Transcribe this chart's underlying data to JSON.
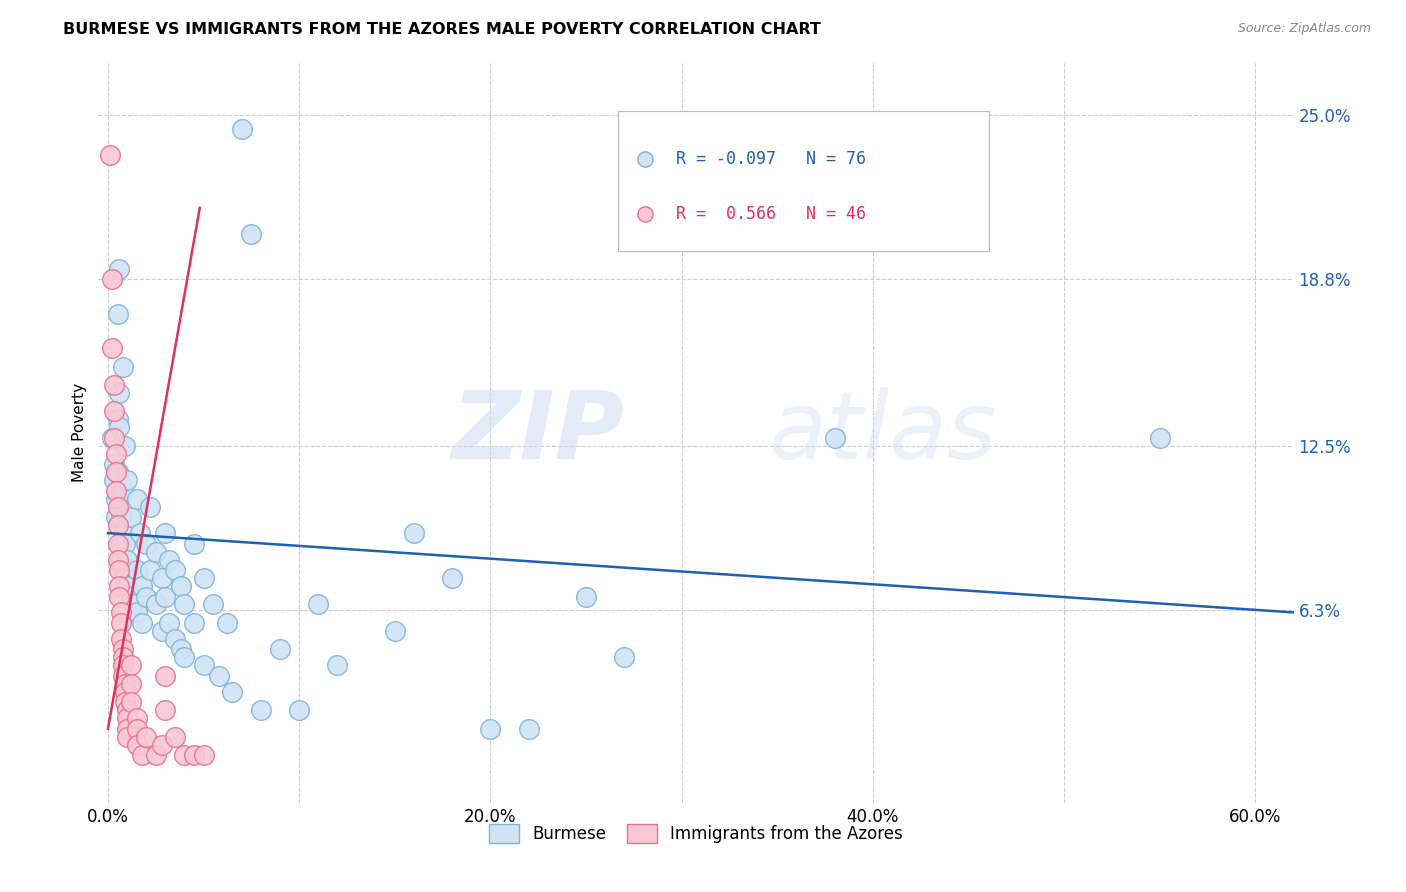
{
  "title": "BURMESE VS IMMIGRANTS FROM THE AZORES MALE POVERTY CORRELATION CHART",
  "source": "Source: ZipAtlas.com",
  "xlabel_ticks": [
    "0.0%",
    "",
    "20.0%",
    "",
    "40.0%",
    "",
    "60.0%"
  ],
  "xlabel_vals": [
    0.0,
    0.1,
    0.2,
    0.3,
    0.4,
    0.5,
    0.6
  ],
  "ylabel_ticks": [
    "6.3%",
    "12.5%",
    "18.8%",
    "25.0%"
  ],
  "ylabel_vals": [
    0.063,
    0.125,
    0.188,
    0.25
  ],
  "xlim": [
    -0.005,
    0.62
  ],
  "ylim": [
    -0.01,
    0.27
  ],
  "watermark_zip": "ZIP",
  "watermark_atlas": "atlas",
  "legend_blue_r": "-0.097",
  "legend_blue_n": "76",
  "legend_pink_r": "0.566",
  "legend_pink_n": "46",
  "blue_face": "#d0e4f5",
  "blue_edge": "#7fb3d9",
  "pink_face": "#f9c8d4",
  "pink_edge": "#e87090",
  "blue_line_color": "#2060b0",
  "pink_line_color": "#e03060",
  "blue_scatter": [
    [
      0.002,
      0.128
    ],
    [
      0.003,
      0.118
    ],
    [
      0.003,
      0.112
    ],
    [
      0.004,
      0.105
    ],
    [
      0.004,
      0.098
    ],
    [
      0.005,
      0.175
    ],
    [
      0.005,
      0.135
    ],
    [
      0.005,
      0.115
    ],
    [
      0.005,
      0.108
    ],
    [
      0.006,
      0.192
    ],
    [
      0.006,
      0.145
    ],
    [
      0.006,
      0.132
    ],
    [
      0.007,
      0.098
    ],
    [
      0.007,
      0.088
    ],
    [
      0.007,
      0.082
    ],
    [
      0.008,
      0.155
    ],
    [
      0.008,
      0.108
    ],
    [
      0.008,
      0.092
    ],
    [
      0.008,
      0.078
    ],
    [
      0.009,
      0.125
    ],
    [
      0.009,
      0.088
    ],
    [
      0.009,
      0.075
    ],
    [
      0.01,
      0.112
    ],
    [
      0.01,
      0.082
    ],
    [
      0.01,
      0.072
    ],
    [
      0.012,
      0.098
    ],
    [
      0.012,
      0.068
    ],
    [
      0.013,
      0.065
    ],
    [
      0.015,
      0.105
    ],
    [
      0.015,
      0.078
    ],
    [
      0.015,
      0.062
    ],
    [
      0.017,
      0.092
    ],
    [
      0.018,
      0.072
    ],
    [
      0.018,
      0.058
    ],
    [
      0.02,
      0.088
    ],
    [
      0.02,
      0.068
    ],
    [
      0.022,
      0.102
    ],
    [
      0.022,
      0.078
    ],
    [
      0.025,
      0.085
    ],
    [
      0.025,
      0.065
    ],
    [
      0.028,
      0.075
    ],
    [
      0.028,
      0.055
    ],
    [
      0.03,
      0.092
    ],
    [
      0.03,
      0.068
    ],
    [
      0.032,
      0.082
    ],
    [
      0.032,
      0.058
    ],
    [
      0.035,
      0.078
    ],
    [
      0.035,
      0.052
    ],
    [
      0.038,
      0.072
    ],
    [
      0.038,
      0.048
    ],
    [
      0.04,
      0.065
    ],
    [
      0.04,
      0.045
    ],
    [
      0.045,
      0.088
    ],
    [
      0.045,
      0.058
    ],
    [
      0.05,
      0.075
    ],
    [
      0.05,
      0.042
    ],
    [
      0.055,
      0.065
    ],
    [
      0.058,
      0.038
    ],
    [
      0.062,
      0.058
    ],
    [
      0.065,
      0.032
    ],
    [
      0.07,
      0.245
    ],
    [
      0.075,
      0.205
    ],
    [
      0.08,
      0.025
    ],
    [
      0.09,
      0.048
    ],
    [
      0.1,
      0.025
    ],
    [
      0.11,
      0.065
    ],
    [
      0.12,
      0.042
    ],
    [
      0.15,
      0.055
    ],
    [
      0.16,
      0.092
    ],
    [
      0.18,
      0.075
    ],
    [
      0.2,
      0.018
    ],
    [
      0.22,
      0.018
    ],
    [
      0.25,
      0.068
    ],
    [
      0.27,
      0.045
    ],
    [
      0.38,
      0.128
    ],
    [
      0.55,
      0.128
    ]
  ],
  "pink_scatter": [
    [
      0.001,
      0.235
    ],
    [
      0.002,
      0.188
    ],
    [
      0.002,
      0.162
    ],
    [
      0.003,
      0.148
    ],
    [
      0.003,
      0.138
    ],
    [
      0.003,
      0.128
    ],
    [
      0.004,
      0.122
    ],
    [
      0.004,
      0.115
    ],
    [
      0.004,
      0.108
    ],
    [
      0.005,
      0.102
    ],
    [
      0.005,
      0.095
    ],
    [
      0.005,
      0.088
    ],
    [
      0.005,
      0.082
    ],
    [
      0.006,
      0.078
    ],
    [
      0.006,
      0.072
    ],
    [
      0.006,
      0.068
    ],
    [
      0.007,
      0.062
    ],
    [
      0.007,
      0.058
    ],
    [
      0.007,
      0.052
    ],
    [
      0.008,
      0.048
    ],
    [
      0.008,
      0.045
    ],
    [
      0.008,
      0.042
    ],
    [
      0.008,
      0.038
    ],
    [
      0.009,
      0.035
    ],
    [
      0.009,
      0.032
    ],
    [
      0.009,
      0.028
    ],
    [
      0.01,
      0.025
    ],
    [
      0.01,
      0.022
    ],
    [
      0.01,
      0.018
    ],
    [
      0.01,
      0.015
    ],
    [
      0.012,
      0.042
    ],
    [
      0.012,
      0.035
    ],
    [
      0.012,
      0.028
    ],
    [
      0.015,
      0.022
    ],
    [
      0.015,
      0.018
    ],
    [
      0.015,
      0.012
    ],
    [
      0.018,
      0.008
    ],
    [
      0.02,
      0.015
    ],
    [
      0.025,
      0.008
    ],
    [
      0.028,
      0.012
    ],
    [
      0.03,
      0.038
    ],
    [
      0.03,
      0.025
    ],
    [
      0.035,
      0.015
    ],
    [
      0.04,
      0.008
    ],
    [
      0.045,
      0.008
    ],
    [
      0.05,
      0.008
    ]
  ],
  "blue_trend_x": [
    0.0,
    0.62
  ],
  "blue_trend_y": [
    0.092,
    0.062
  ],
  "pink_trend_x": [
    0.0,
    0.048
  ],
  "pink_trend_y": [
    0.018,
    0.215
  ]
}
